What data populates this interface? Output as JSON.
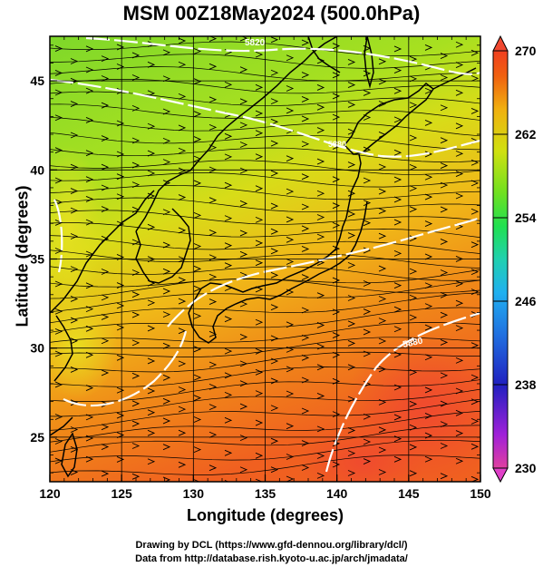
{
  "title": "MSM 00Z18May2024 (500.0hPa)",
  "x_axis": {
    "label": "Longitude (degrees)",
    "range": [
      120,
      150
    ],
    "ticks": [
      "120",
      "125",
      "130",
      "135",
      "140",
      "145",
      "150"
    ]
  },
  "y_axis": {
    "label": "Latitude  (degrees)",
    "range": [
      22.5,
      47.5
    ],
    "ticks": [
      "25",
      "30",
      "35",
      "40",
      "45"
    ]
  },
  "colorbar": {
    "min": 230,
    "max": 270,
    "labels": [
      "270",
      "262",
      "254",
      "246",
      "238",
      "230"
    ],
    "colors": [
      "#e8409a",
      "#9a20d8",
      "#2020c0",
      "#2060e0",
      "#20a0f0",
      "#20d0c0",
      "#20e060",
      "#60e020",
      "#c0e020",
      "#f0d010",
      "#f09010",
      "#f04010"
    ]
  },
  "contour_labels": [
    "5820",
    "5880",
    "5880"
  ],
  "credit": {
    "line1": "Drawing by DCL (https://www.gfd-dennou.org/library/dcl/)",
    "line2": "Data from http://database.rish.kyoto-u.ac.jp/arch/jmadata/"
  }
}
